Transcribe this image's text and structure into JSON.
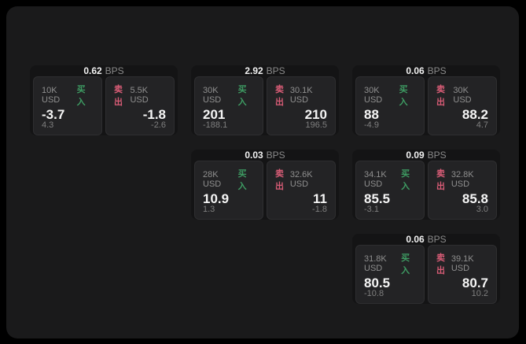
{
  "page": {
    "outer_background": "#000000",
    "panel_background": "#1a1a1b"
  },
  "colors": {
    "buy_green": "#3e9c63",
    "sell_red": "#d85c76",
    "card_background": "#141415",
    "tile_background": "#232325",
    "primary_text": "#f5f5f5",
    "secondary_text": "#8f8f8f"
  },
  "labels": {
    "bps_suffix": "BPS",
    "buy": "买入",
    "sell": "卖出"
  },
  "cards": [
    {
      "row": 1,
      "col": 1,
      "bps": "0.62",
      "buy": {
        "notional": "10K USD",
        "price": "-3.7",
        "sub_value": "4.3"
      },
      "sell": {
        "notional": "5.5K USD",
        "price": "-1.8",
        "sub_value": "-2.6"
      }
    },
    {
      "row": 1,
      "col": 2,
      "bps": "2.92",
      "buy": {
        "notional": "30K USD",
        "price": "201",
        "sub_value": "-188.1"
      },
      "sell": {
        "notional": "30.1K USD",
        "price": "210",
        "sub_value": "196.5"
      }
    },
    {
      "row": 1,
      "col": 3,
      "bps": "0.06",
      "buy": {
        "notional": "30K USD",
        "price": "88",
        "sub_value": "-4.9"
      },
      "sell": {
        "notional": "30K USD",
        "price": "88.2",
        "sub_value": "4.7"
      }
    },
    {
      "row": 2,
      "col": 2,
      "bps": "0.03",
      "buy": {
        "notional": "28K USD",
        "price": "10.9",
        "sub_value": "1.3"
      },
      "sell": {
        "notional": "32.6K USD",
        "price": "11",
        "sub_value": "-1.8"
      }
    },
    {
      "row": 2,
      "col": 3,
      "bps": "0.09",
      "buy": {
        "notional": "34.1K USD",
        "price": "85.5",
        "sub_value": "-3.1"
      },
      "sell": {
        "notional": "32.8K USD",
        "price": "85.8",
        "sub_value": "3.0"
      }
    },
    {
      "row": 3,
      "col": 3,
      "bps": "0.06",
      "buy": {
        "notional": "31.8K USD",
        "price": "80.5",
        "sub_value": "-10.8"
      },
      "sell": {
        "notional": "39.1K USD",
        "price": "80.7",
        "sub_value": "10.2"
      }
    }
  ]
}
